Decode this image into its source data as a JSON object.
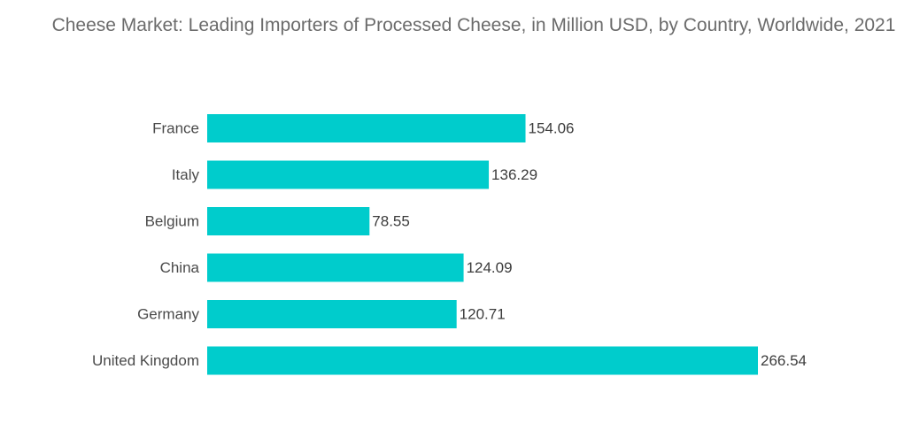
{
  "chart_data": {
    "type": "bar",
    "orientation": "horizontal",
    "title": "Cheese Market: Leading Importers of Processed Cheese, in Million USD, by Country, Worldwide, 2021",
    "categories": [
      "France",
      "Italy",
      "Belgium",
      "China",
      "Germany",
      "United Kingdom"
    ],
    "values": [
      154.06,
      136.29,
      78.55,
      124.09,
      120.71,
      266.54
    ],
    "value_labels": [
      "154.06",
      "136.29",
      "78.55",
      "124.09",
      "120.71",
      "266.54"
    ],
    "xlabel": "",
    "ylabel": "",
    "xlim": [
      0,
      266.54
    ],
    "grid": false,
    "legend": "none",
    "bar_color": "#00cccc"
  }
}
